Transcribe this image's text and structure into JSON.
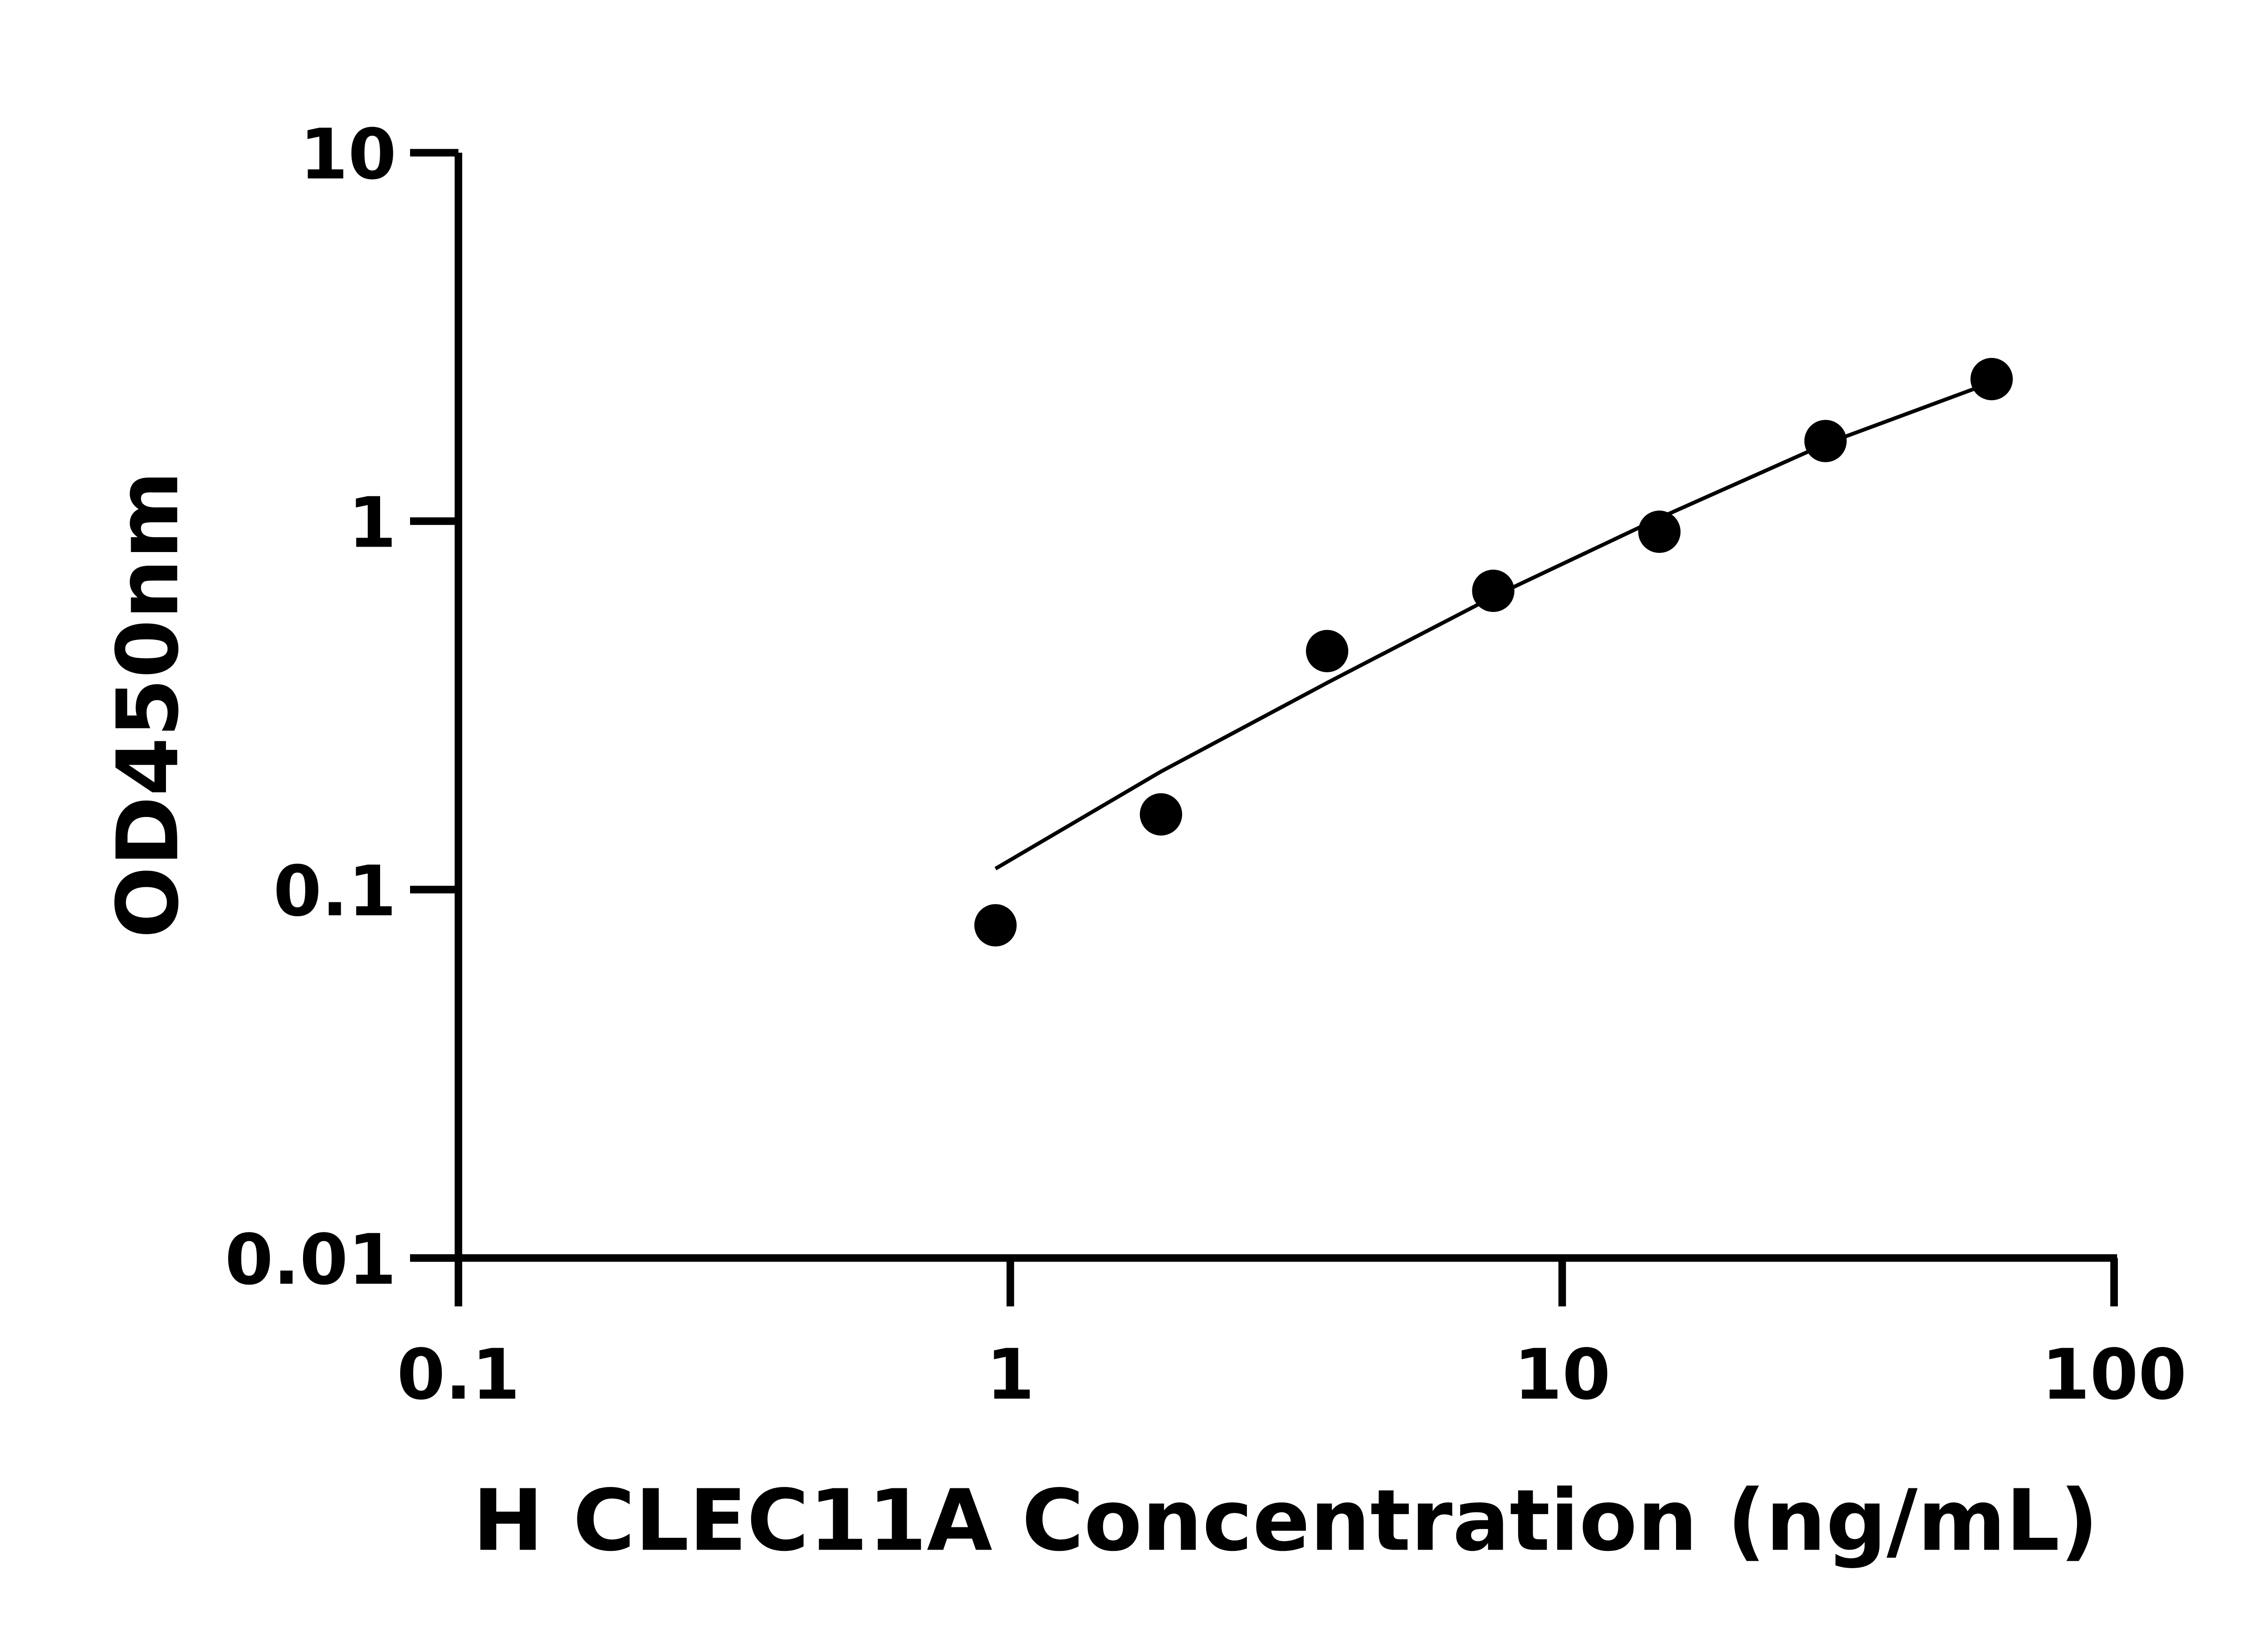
{
  "chart_data": {
    "type": "scatter",
    "title": "",
    "xlabel": "H CLEC11A Concentration (ng/mL)",
    "ylabel": "OD450nm",
    "xscale": "log",
    "yscale": "log",
    "xlim": [
      0.1,
      100
    ],
    "ylim": [
      0.01,
      10
    ],
    "xticks": [
      "0.1",
      "1",
      "10",
      "100"
    ],
    "yticks": [
      "0.01",
      "0.1",
      "1",
      "10"
    ],
    "grid": false,
    "points": {
      "x": [
        0.94,
        1.875,
        3.75,
        7.5,
        15,
        30,
        60
      ],
      "y": [
        0.08,
        0.16,
        0.444,
        0.647,
        0.936,
        1.65,
        2.43
      ]
    },
    "fit_curve": {
      "x": [
        0.94,
        1.875,
        3.75,
        7.5,
        15,
        30,
        60
      ],
      "y": [
        0.114,
        0.209,
        0.364,
        0.624,
        1.02,
        1.62,
        2.38
      ]
    },
    "colors": {
      "marker": "#000000",
      "line": "#000000",
      "axis": "#000000"
    }
  }
}
